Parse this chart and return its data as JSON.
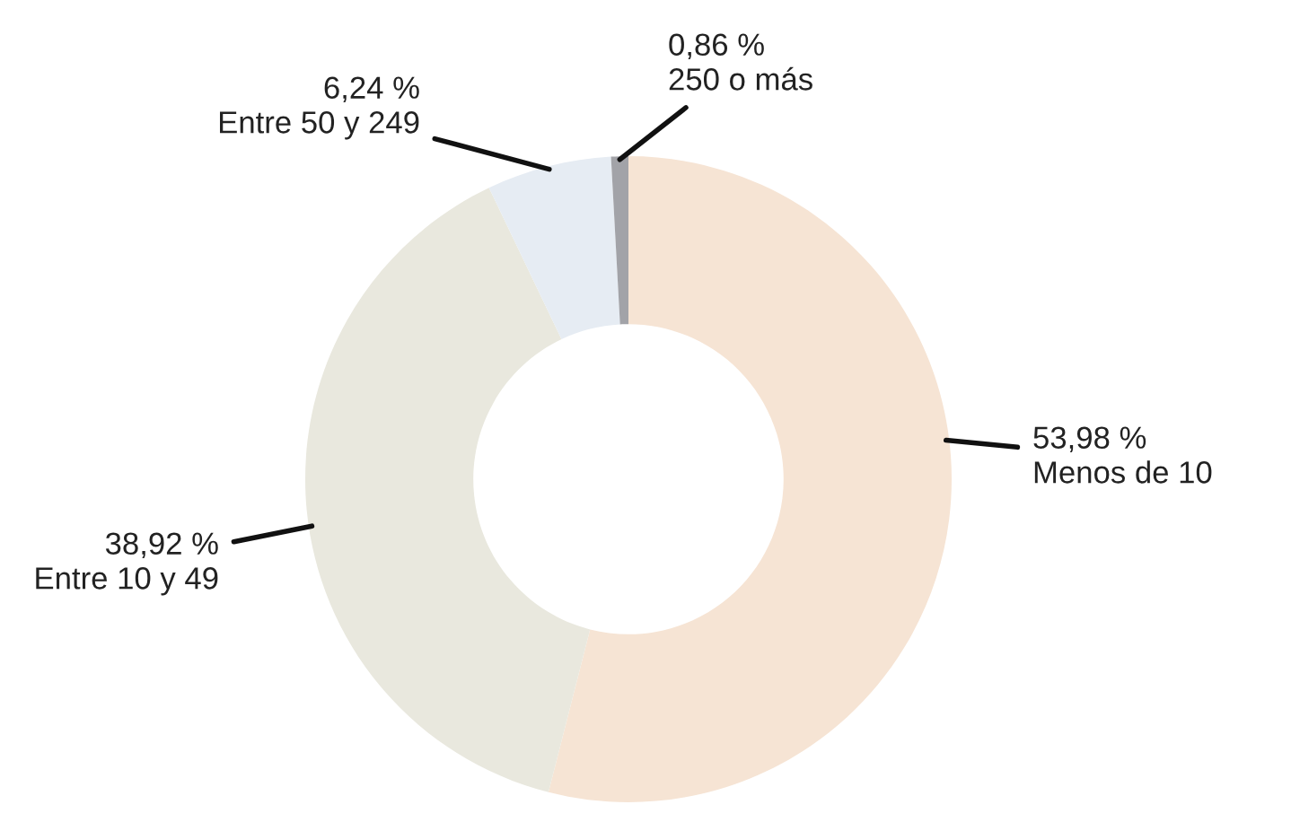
{
  "chart_data": {
    "type": "donut",
    "categories": [
      "Menos de 10",
      "Entre 10 y 49",
      "Entre 50 y 249",
      "250 o más"
    ],
    "values": [
      53.98,
      38.92,
      6.24,
      0.86
    ],
    "value_labels": [
      "53,98 %",
      "38,92 %",
      "6,24 %",
      "0,86 %"
    ],
    "colors": [
      "#f6e4d4",
      "#e9e8de",
      "#e6ecf3",
      "#a2a3a8"
    ]
  }
}
